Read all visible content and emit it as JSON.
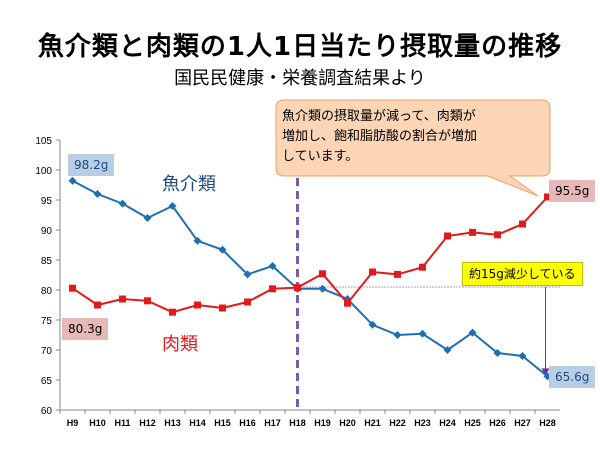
{
  "title": "魚介類と肉類の1人1日当たり摂取量の推移",
  "subtitle": "国民民健康・栄養調査結果より",
  "chart_data": {
    "type": "line",
    "categories": [
      "H9",
      "H10",
      "H11",
      "H12",
      "H13",
      "H14",
      "H15",
      "H16",
      "H17",
      "H18",
      "H19",
      "H20",
      "H21",
      "H22",
      "H23",
      "H24",
      "H25",
      "H26",
      "H27",
      "H28"
    ],
    "ylim": [
      60,
      105
    ],
    "yticks": [
      60,
      65,
      70,
      75,
      80,
      85,
      90,
      95,
      100,
      105
    ],
    "series": [
      {
        "name": "魚介類",
        "color": "#1f6fb4",
        "values": [
          98.2,
          96.0,
          94.4,
          92.0,
          94.0,
          88.2,
          86.7,
          82.6,
          84.0,
          80.2,
          80.2,
          78.5,
          74.2,
          72.5,
          72.7,
          70.0,
          72.9,
          69.5,
          69.0,
          65.6
        ]
      },
      {
        "name": "肉類",
        "color": "#e3191c",
        "values": [
          80.3,
          77.5,
          78.5,
          78.2,
          76.3,
          77.5,
          77.0,
          78.0,
          80.2,
          80.4,
          82.7,
          77.8,
          83.0,
          82.6,
          83.8,
          89.0,
          89.6,
          89.2,
          91.0,
          95.5
        ]
      }
    ],
    "divider_at": "H18",
    "reference_value": 80.5,
    "grid": false,
    "legend": "inline labels"
  },
  "labels": {
    "fish_start": "98.2g",
    "meat_start": "80.3g",
    "fish_end": "65.6g",
    "meat_end": "95.5g",
    "fish_name": "魚介類",
    "meat_name": "肉類",
    "decrease_note": "約15g減少している"
  },
  "bubble": {
    "lines": [
      "魚介類の摂取量が減って、肉類が",
      "増加し、飽和脂肪酸の割合が増加",
      "しています。"
    ],
    "fill": "#fbd5b5",
    "stroke": "#e8a06a"
  }
}
